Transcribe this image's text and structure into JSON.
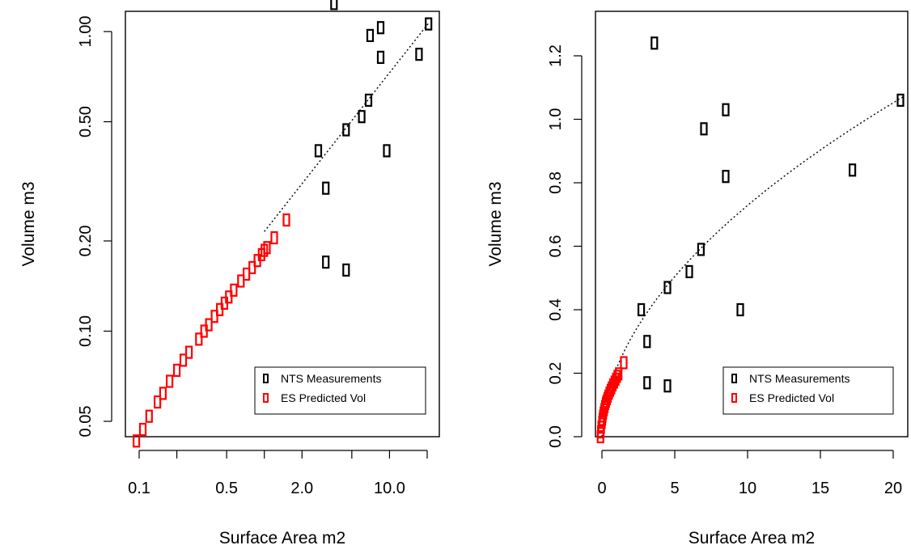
{
  "chart_data": [
    {
      "type": "scatter",
      "log_scale": {
        "x": true,
        "y": true
      },
      "xlabel": "Surface Area m2",
      "ylabel": "Volume m3",
      "xlim": [
        0.1,
        20
      ],
      "ylim": [
        0.042,
        1.3
      ],
      "x_ticks": [
        0.1,
        0.2,
        0.5,
        1,
        2,
        5,
        10,
        20
      ],
      "x_tick_labels": [
        "0.1",
        "",
        "0.5",
        "",
        "2.0",
        "",
        "10.0",
        ""
      ],
      "y_ticks": [
        0.05,
        0.1,
        0.2,
        0.5,
        1.0
      ],
      "y_tick_labels": [
        "0.05",
        "0.10",
        "0.20",
        "0.50",
        "1.00"
      ],
      "grid": false,
      "legend_position": "bottom-right",
      "series": [
        {
          "name": "NTS Measurements",
          "color": "#000000",
          "marker": "rectangle",
          "points": [
            [
              3.6,
              1.24
            ],
            [
              8.5,
              1.03
            ],
            [
              7.0,
              0.97
            ],
            [
              20.5,
              1.06
            ],
            [
              8.5,
              0.82
            ],
            [
              17.2,
              0.84
            ],
            [
              6.8,
              0.59
            ],
            [
              6.0,
              0.52
            ],
            [
              4.5,
              0.47
            ],
            [
              2.7,
              0.4
            ],
            [
              9.5,
              0.4
            ],
            [
              3.1,
              0.3
            ],
            [
              3.1,
              0.17
            ],
            [
              4.5,
              0.16
            ]
          ]
        },
        {
          "name": "ES Predicted Vol",
          "color": "#ff0000",
          "marker": "rectangle",
          "points": [
            [
              0.095,
              0.043
            ],
            [
              0.107,
              0.047
            ],
            [
              0.12,
              0.052
            ],
            [
              0.14,
              0.058
            ],
            [
              0.155,
              0.062
            ],
            [
              0.175,
              0.068
            ],
            [
              0.2,
              0.074
            ],
            [
              0.225,
              0.08
            ],
            [
              0.25,
              0.085
            ],
            [
              0.3,
              0.094
            ],
            [
              0.33,
              0.1
            ],
            [
              0.36,
              0.105
            ],
            [
              0.4,
              0.112
            ],
            [
              0.44,
              0.118
            ],
            [
              0.48,
              0.124
            ],
            [
              0.52,
              0.13
            ],
            [
              0.57,
              0.137
            ],
            [
              0.65,
              0.147
            ],
            [
              0.72,
              0.155
            ],
            [
              0.8,
              0.163
            ],
            [
              0.88,
              0.172
            ],
            [
              0.95,
              0.18
            ],
            [
              1.0,
              0.186
            ],
            [
              1.05,
              0.19
            ],
            [
              1.2,
              0.205
            ],
            [
              1.5,
              0.235
            ]
          ]
        }
      ],
      "fit_line": {
        "style": "dotted",
        "color": "#000000",
        "a": 0.215,
        "b": 0.53,
        "x_range": [
          1.0,
          20.5
        ]
      }
    },
    {
      "type": "scatter",
      "log_scale": {
        "x": false,
        "y": false
      },
      "xlabel": "Surface Area m2",
      "ylabel": "Volume m3",
      "xlim": [
        -0.8,
        20.8
      ],
      "ylim": [
        0.0,
        1.3
      ],
      "x_ticks": [
        0,
        5,
        10,
        15,
        20
      ],
      "x_tick_labels": [
        "0",
        "5",
        "10",
        "15",
        "20"
      ],
      "y_ticks": [
        0.0,
        0.2,
        0.4,
        0.6,
        0.8,
        1.0,
        1.2
      ],
      "y_tick_labels": [
        "0.0",
        "0.2",
        "0.4",
        "0.6",
        "0.8",
        "1.0",
        "1.2"
      ],
      "grid": false,
      "legend_position": "bottom-right",
      "series": [
        {
          "name": "NTS Measurements",
          "color": "#000000",
          "marker": "rectangle",
          "points": [
            [
              3.6,
              1.24
            ],
            [
              8.5,
              1.03
            ],
            [
              7.0,
              0.97
            ],
            [
              20.5,
              1.06
            ],
            [
              8.5,
              0.82
            ],
            [
              17.2,
              0.84
            ],
            [
              6.8,
              0.59
            ],
            [
              6.0,
              0.52
            ],
            [
              4.5,
              0.47
            ],
            [
              2.7,
              0.4
            ],
            [
              9.5,
              0.4
            ],
            [
              3.1,
              0.3
            ],
            [
              3.1,
              0.17
            ],
            [
              4.5,
              0.16
            ]
          ]
        },
        {
          "name": "ES Predicted Vol",
          "color": "#ff0000",
          "marker": "rectangle",
          "points": [
            [
              -0.1,
              0.0
            ],
            [
              -0.08,
              0.015
            ],
            [
              -0.05,
              0.03
            ],
            [
              0.0,
              0.045
            ],
            [
              0.03,
              0.055
            ],
            [
              0.06,
              0.065
            ],
            [
              0.1,
              0.075
            ],
            [
              0.15,
              0.085
            ],
            [
              0.2,
              0.095
            ],
            [
              0.25,
              0.105
            ],
            [
              0.3,
              0.112
            ],
            [
              0.36,
              0.12
            ],
            [
              0.42,
              0.128
            ],
            [
              0.5,
              0.137
            ],
            [
              0.58,
              0.146
            ],
            [
              0.66,
              0.154
            ],
            [
              0.75,
              0.163
            ],
            [
              0.85,
              0.172
            ],
            [
              0.95,
              0.181
            ],
            [
              1.05,
              0.19
            ],
            [
              1.15,
              0.198
            ],
            [
              1.5,
              0.233
            ]
          ]
        }
      ],
      "fit_line": {
        "style": "dotted",
        "color": "#000000",
        "a": 0.215,
        "b": 0.53,
        "x_range": [
          0.0,
          20.8
        ]
      }
    }
  ]
}
